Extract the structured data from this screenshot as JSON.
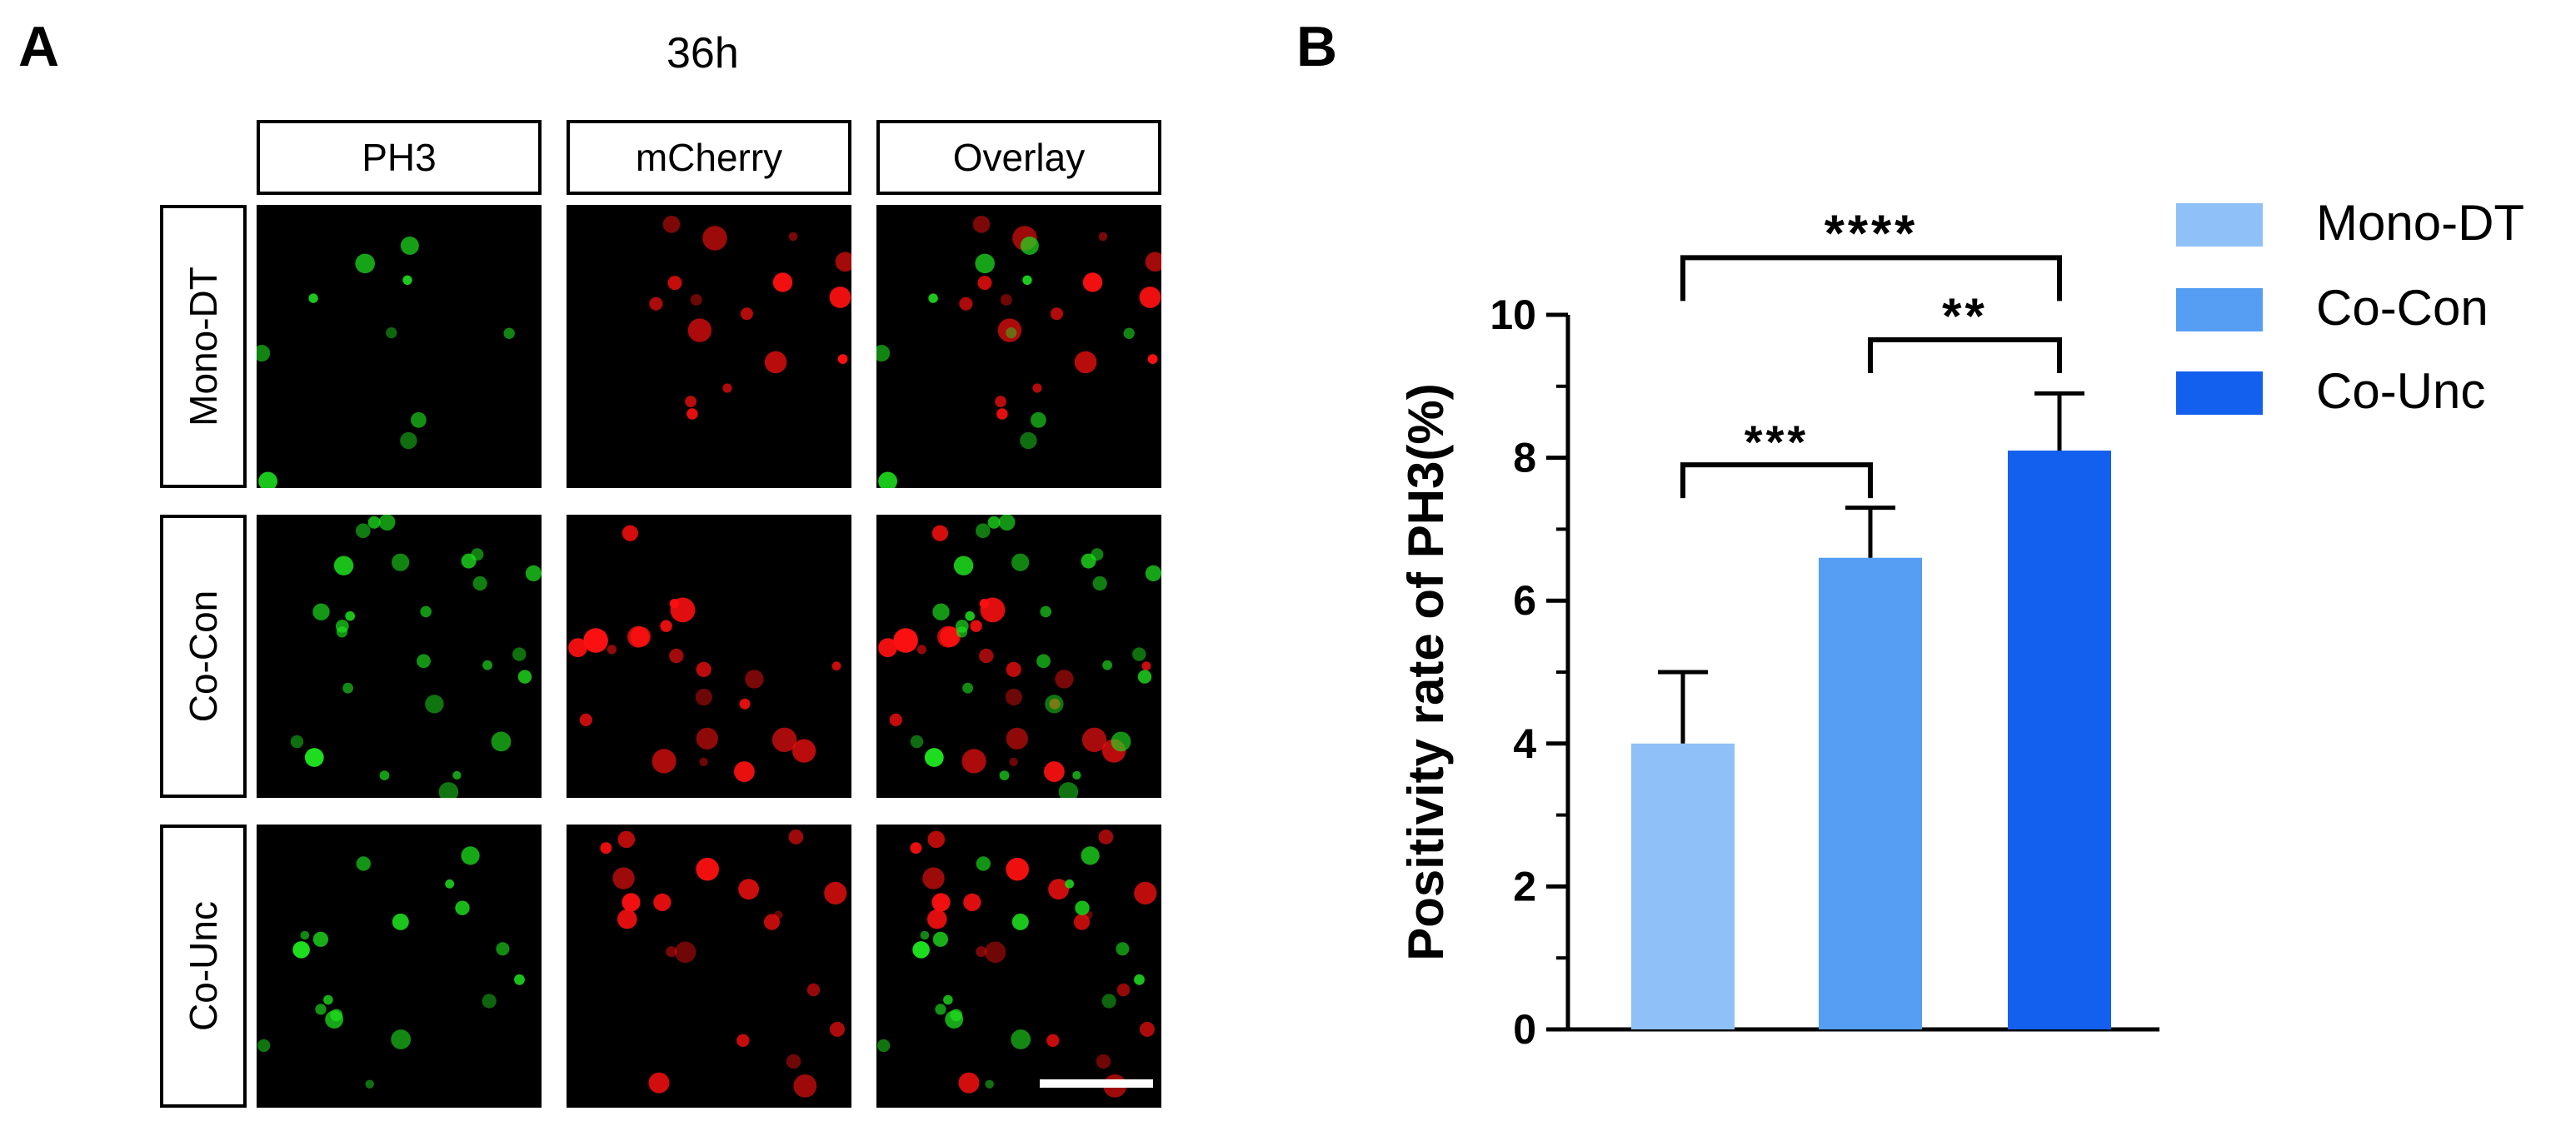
{
  "panel_a": {
    "letter": "A",
    "time_label": "36h",
    "columns": [
      "PH3",
      "mCherry",
      "Overlay"
    ],
    "rows": [
      "Mono-DT",
      "Co-Con",
      "Co-Unc"
    ]
  },
  "panel_b": {
    "letter": "B"
  },
  "colors": {
    "green": "#1fe01f",
    "red": "#ff1010",
    "mono_dt": "#8fc0f7",
    "co_con": "#569ef4",
    "co_unc": "#1360ef"
  },
  "chart_data": {
    "type": "bar",
    "categories": [
      "Mono-DT",
      "Co-Con",
      "Co-Unc"
    ],
    "values": [
      4.0,
      6.6,
      8.1
    ],
    "errors": [
      1.0,
      0.7,
      0.8
    ],
    "ylabel": "Positivity rate of PH3(%)",
    "ylim": [
      0,
      10
    ],
    "yticks": [
      0,
      2,
      4,
      6,
      8,
      10
    ],
    "legend": [
      "Mono-DT",
      "Co-Con",
      "Co-Unc"
    ],
    "legend_position": "top-right",
    "significance": [
      {
        "from": 0,
        "to": 1,
        "label": "***"
      },
      {
        "from": 1,
        "to": 2,
        "label": "**"
      },
      {
        "from": 0,
        "to": 2,
        "label": "****"
      }
    ]
  }
}
